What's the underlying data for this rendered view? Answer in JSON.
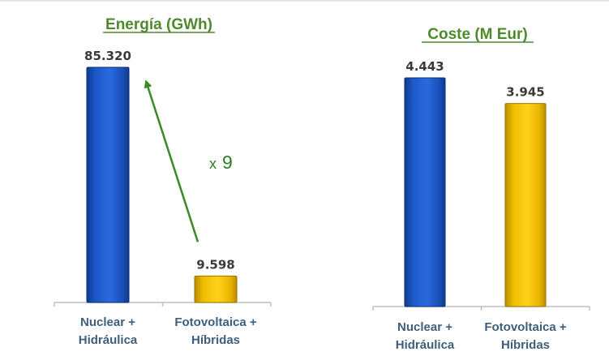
{
  "colors": {
    "blue": "#1f5fcf",
    "yellow": "#f2c200",
    "title_green": "#4e8a2c",
    "arrow_green": "#3a8a23"
  },
  "chart_data": [
    {
      "type": "bar",
      "title": "Energía (GWh)",
      "categories": [
        "Nuclear +\nHidráulica",
        "Fotovoltaica +\nHíbridas"
      ],
      "category_lines": [
        [
          "Nuclear +",
          "Hidráulica"
        ],
        [
          "Fotovoltaica +",
          "Híbridas"
        ]
      ],
      "values": [
        85320,
        9598
      ],
      "value_labels": [
        "85.320",
        "9.598"
      ],
      "colors": [
        "#1f5fcf",
        "#f2c200"
      ],
      "ylim": [
        0,
        85320
      ],
      "grid": false,
      "annotation": {
        "prefix": "x",
        "value": "9"
      }
    },
    {
      "type": "bar",
      "title": "Coste (M Eur)",
      "categories": [
        "Nuclear +\nHidráulica",
        "Fotovoltaica +\nHíbridas"
      ],
      "category_lines": [
        [
          "Nuclear +",
          "Hidráulica"
        ],
        [
          "Fotovoltaica +",
          "Híbridas"
        ]
      ],
      "values": [
        4.443,
        3.945
      ],
      "value_labels": [
        "4.443",
        "3.945"
      ],
      "colors": [
        "#1f5fcf",
        "#f2c200"
      ],
      "ylim": [
        0,
        4.443
      ],
      "grid": false
    }
  ]
}
